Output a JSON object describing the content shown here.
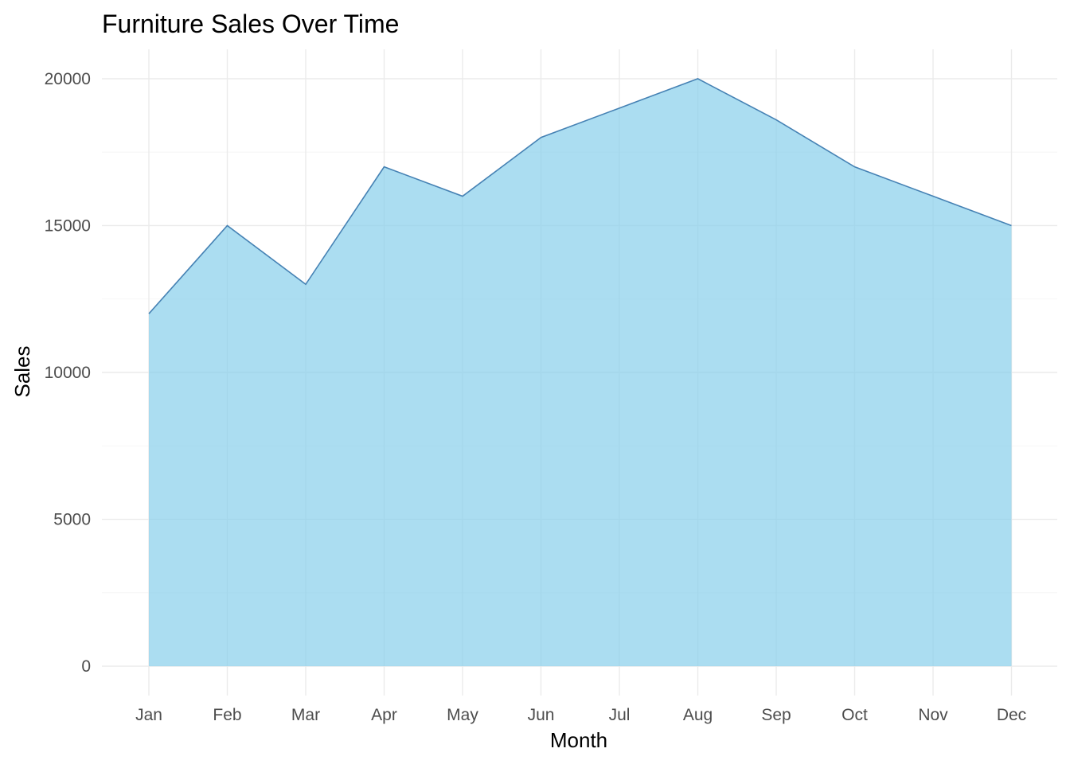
{
  "chart_data": {
    "type": "area",
    "title": "Furniture Sales Over Time",
    "xlabel": "Month",
    "ylabel": "Sales",
    "categories": [
      "Jan",
      "Feb",
      "Mar",
      "Apr",
      "May",
      "Jun",
      "Jul",
      "Aug",
      "Sep",
      "Oct",
      "Nov",
      "Dec"
    ],
    "series": [
      {
        "values": [
          12000,
          15000,
          13000,
          17000,
          16000,
          18000,
          19000,
          20000,
          18600,
          17000,
          16000,
          15000
        ]
      }
    ],
    "y_ticks": [
      "0",
      "5000",
      "10000",
      "15000",
      "20000"
    ],
    "ylim": [
      -1000,
      21000
    ],
    "grid": true,
    "legend": "none",
    "colors": {
      "fill": "#87ceeb",
      "line": "#4682b4"
    }
  }
}
